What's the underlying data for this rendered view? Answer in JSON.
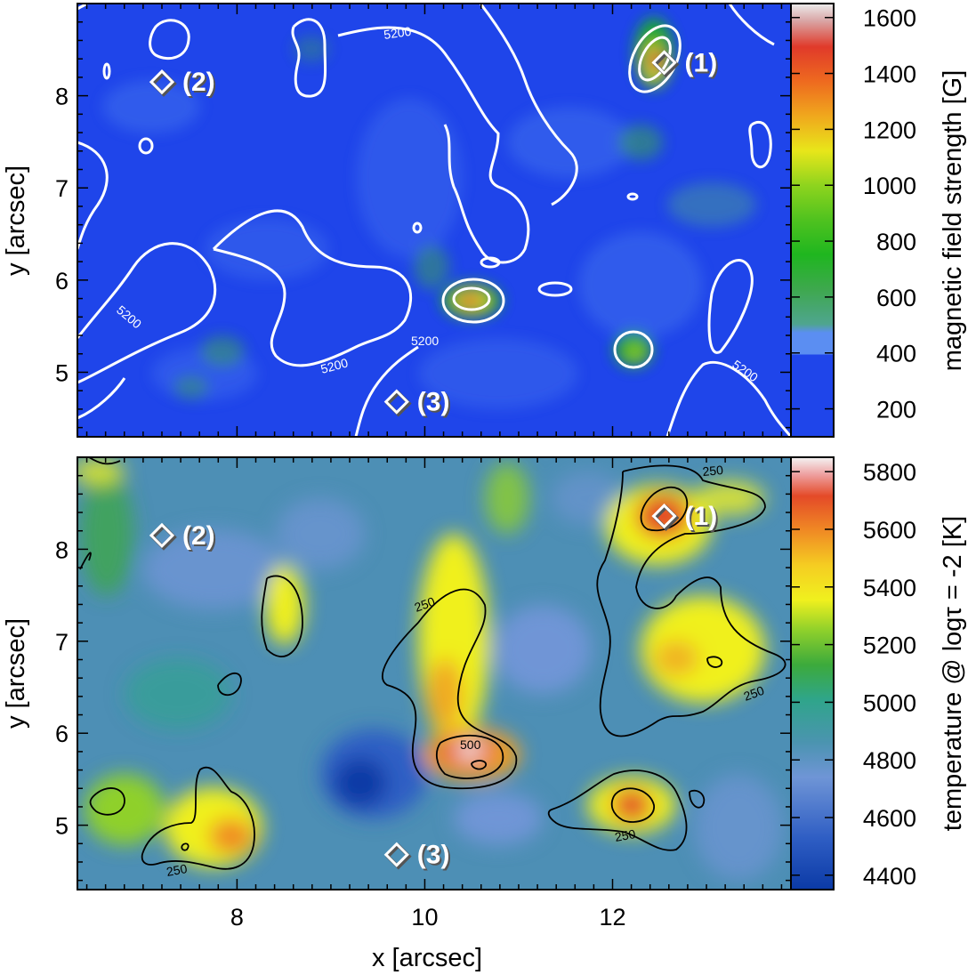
{
  "chart_data": [
    {
      "type": "heatmap",
      "panel": "top",
      "xlim": [
        6.3,
        13.9
      ],
      "ylim": [
        4.3,
        9.0
      ],
      "yticks": [
        5,
        6,
        7,
        8
      ],
      "xticks": [
        8,
        10,
        12
      ],
      "ylabel": "y [arcsec]",
      "xlabel": "",
      "colorbar": {
        "label": "magnetic field strength [G]",
        "range": [
          100,
          1650
        ],
        "ticks": [
          200,
          400,
          600,
          800,
          1000,
          1200,
          1400,
          1600
        ]
      },
      "contour_label": "5200",
      "contour_color": "#ffffff",
      "markers": [
        {
          "label": "(1)",
          "x": 12.55,
          "y": 8.36
        },
        {
          "label": "(2)",
          "x": 7.2,
          "y": 8.15
        },
        {
          "label": "(3)",
          "x": 9.7,
          "y": 4.68
        }
      ]
    },
    {
      "type": "heatmap",
      "panel": "bottom",
      "xlim": [
        6.3,
        13.9
      ],
      "ylim": [
        4.3,
        9.0
      ],
      "yticks": [
        5,
        6,
        7,
        8
      ],
      "xticks": [
        8,
        10,
        12
      ],
      "ylabel": "y [arcsec]",
      "xlabel": "x [arcsec]",
      "colorbar": {
        "label": "temperature @ logτ = -2 [K]",
        "range": [
          4350,
          5850
        ],
        "ticks": [
          4400,
          4600,
          4800,
          5000,
          5200,
          5400,
          5600,
          5800
        ]
      },
      "contour_labels": [
        "250",
        "500"
      ],
      "contour_color": "#000000",
      "markers": [
        {
          "label": "(1)",
          "x": 12.55,
          "y": 8.36
        },
        {
          "label": "(2)",
          "x": 7.2,
          "y": 8.15
        },
        {
          "label": "(3)",
          "x": 9.7,
          "y": 4.68
        }
      ]
    }
  ]
}
